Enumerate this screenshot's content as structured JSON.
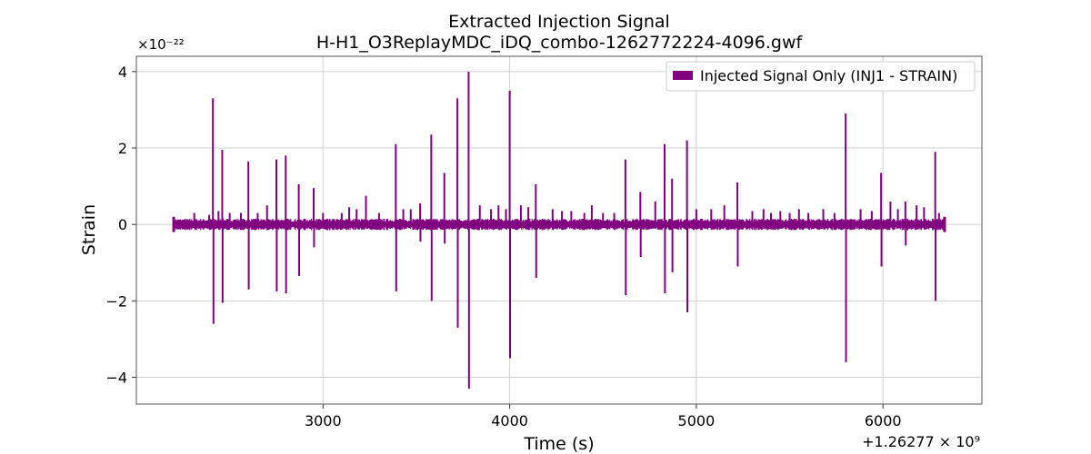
{
  "chart_data": {
    "type": "line",
    "title": "Extracted Injection Signal",
    "subtitle": "H-H1_O3ReplayMDC_iDQ_combo-1262772224-4096.gwf",
    "xlabel": "Time (s)",
    "ylabel": "Strain",
    "x_offset_label": "+1.26277 × 10⁹",
    "y_exponent_label": "×10⁻²²",
    "xlim": [
      2000,
      6530
    ],
    "ylim": [
      -4.7,
      4.4
    ],
    "x_ticks": [
      3000,
      4000,
      5000,
      6000
    ],
    "y_ticks": [
      -4,
      -2,
      0,
      2,
      4
    ],
    "x_tick_labels": [
      "3000",
      "4000",
      "5000",
      "6000"
    ],
    "y_tick_labels": [
      "−4",
      "−2",
      "0",
      "2",
      "4"
    ],
    "grid": true,
    "legend_position": "top-right",
    "series": [
      {
        "name": "Injected Signal Only (INJ1 - STRAIN)",
        "color": "#800080",
        "x_range": [
          2200,
          6330
        ],
        "baseline_amplitude": 0.15,
        "spikes": [
          {
            "x": 2310,
            "y": 0.3
          },
          {
            "x": 2390,
            "y": 0.25
          },
          {
            "x": 2410,
            "y": 3.3
          },
          {
            "x": 2413,
            "y": -2.6
          },
          {
            "x": 2440,
            "y": 0.35
          },
          {
            "x": 2460,
            "y": 1.95
          },
          {
            "x": 2462,
            "y": -2.05
          },
          {
            "x": 2500,
            "y": 0.3
          },
          {
            "x": 2560,
            "y": 0.3
          },
          {
            "x": 2600,
            "y": 1.65
          },
          {
            "x": 2602,
            "y": -1.7
          },
          {
            "x": 2650,
            "y": 0.3
          },
          {
            "x": 2700,
            "y": 0.5
          },
          {
            "x": 2750,
            "y": 1.7
          },
          {
            "x": 2752,
            "y": -1.75
          },
          {
            "x": 2800,
            "y": 1.8
          },
          {
            "x": 2802,
            "y": -1.8
          },
          {
            "x": 2870,
            "y": 1.05
          },
          {
            "x": 2872,
            "y": -1.35
          },
          {
            "x": 2950,
            "y": 0.95
          },
          {
            "x": 2952,
            "y": -0.6
          },
          {
            "x": 3000,
            "y": 0.3
          },
          {
            "x": 3100,
            "y": 0.3
          },
          {
            "x": 3140,
            "y": 0.45
          },
          {
            "x": 3180,
            "y": 0.4
          },
          {
            "x": 3230,
            "y": 0.75
          },
          {
            "x": 3300,
            "y": 0.3
          },
          {
            "x": 3390,
            "y": 2.1
          },
          {
            "x": 3392,
            "y": -1.75
          },
          {
            "x": 3430,
            "y": 0.4
          },
          {
            "x": 3470,
            "y": 0.4
          },
          {
            "x": 3520,
            "y": 0.55
          },
          {
            "x": 3522,
            "y": -0.45
          },
          {
            "x": 3580,
            "y": 2.35
          },
          {
            "x": 3582,
            "y": -2.0
          },
          {
            "x": 3650,
            "y": 1.35
          },
          {
            "x": 3652,
            "y": -0.5
          },
          {
            "x": 3720,
            "y": 3.3
          },
          {
            "x": 3722,
            "y": -2.7
          },
          {
            "x": 3780,
            "y": 4.0
          },
          {
            "x": 3782,
            "y": -4.3
          },
          {
            "x": 3840,
            "y": 0.5
          },
          {
            "x": 3900,
            "y": 0.4
          },
          {
            "x": 3940,
            "y": 0.5
          },
          {
            "x": 3980,
            "y": 0.4
          },
          {
            "x": 4000,
            "y": 3.5
          },
          {
            "x": 4002,
            "y": -3.5
          },
          {
            "x": 4060,
            "y": 0.5
          },
          {
            "x": 4100,
            "y": 0.45
          },
          {
            "x": 4140,
            "y": 1.05
          },
          {
            "x": 4142,
            "y": -1.4
          },
          {
            "x": 4230,
            "y": 0.4
          },
          {
            "x": 4280,
            "y": 0.35
          },
          {
            "x": 4330,
            "y": 0.35
          },
          {
            "x": 4400,
            "y": 0.3
          },
          {
            "x": 4440,
            "y": 0.5
          },
          {
            "x": 4500,
            "y": 0.3
          },
          {
            "x": 4560,
            "y": 0.3
          },
          {
            "x": 4620,
            "y": 1.7
          },
          {
            "x": 4622,
            "y": -1.85
          },
          {
            "x": 4700,
            "y": 0.85
          },
          {
            "x": 4702,
            "y": -0.85
          },
          {
            "x": 4780,
            "y": 0.6
          },
          {
            "x": 4830,
            "y": 2.1
          },
          {
            "x": 4832,
            "y": -1.8
          },
          {
            "x": 4870,
            "y": 1.2
          },
          {
            "x": 4872,
            "y": -1.25
          },
          {
            "x": 4950,
            "y": 2.2
          },
          {
            "x": 4952,
            "y": -2.3
          },
          {
            "x": 5000,
            "y": 0.4
          },
          {
            "x": 5080,
            "y": 0.4
          },
          {
            "x": 5150,
            "y": 0.5
          },
          {
            "x": 5220,
            "y": 1.1
          },
          {
            "x": 5222,
            "y": -1.1
          },
          {
            "x": 5300,
            "y": 0.35
          },
          {
            "x": 5360,
            "y": 0.4
          },
          {
            "x": 5400,
            "y": 0.3
          },
          {
            "x": 5450,
            "y": 0.35
          },
          {
            "x": 5500,
            "y": 0.3
          },
          {
            "x": 5550,
            "y": 0.4
          },
          {
            "x": 5600,
            "y": 0.3
          },
          {
            "x": 5680,
            "y": 0.4
          },
          {
            "x": 5740,
            "y": 0.3
          },
          {
            "x": 5800,
            "y": 2.9
          },
          {
            "x": 5802,
            "y": -3.6
          },
          {
            "x": 5880,
            "y": 0.4
          },
          {
            "x": 5940,
            "y": 0.35
          },
          {
            "x": 5990,
            "y": 1.35
          },
          {
            "x": 5992,
            "y": -1.1
          },
          {
            "x": 6040,
            "y": 0.6
          },
          {
            "x": 6080,
            "y": 0.4
          },
          {
            "x": 6120,
            "y": 0.6
          },
          {
            "x": 6122,
            "y": -0.55
          },
          {
            "x": 6180,
            "y": 0.5
          },
          {
            "x": 6220,
            "y": 0.45
          },
          {
            "x": 6280,
            "y": 1.9
          },
          {
            "x": 6282,
            "y": -2.0
          },
          {
            "x": 6300,
            "y": 0.3
          }
        ]
      }
    ]
  }
}
